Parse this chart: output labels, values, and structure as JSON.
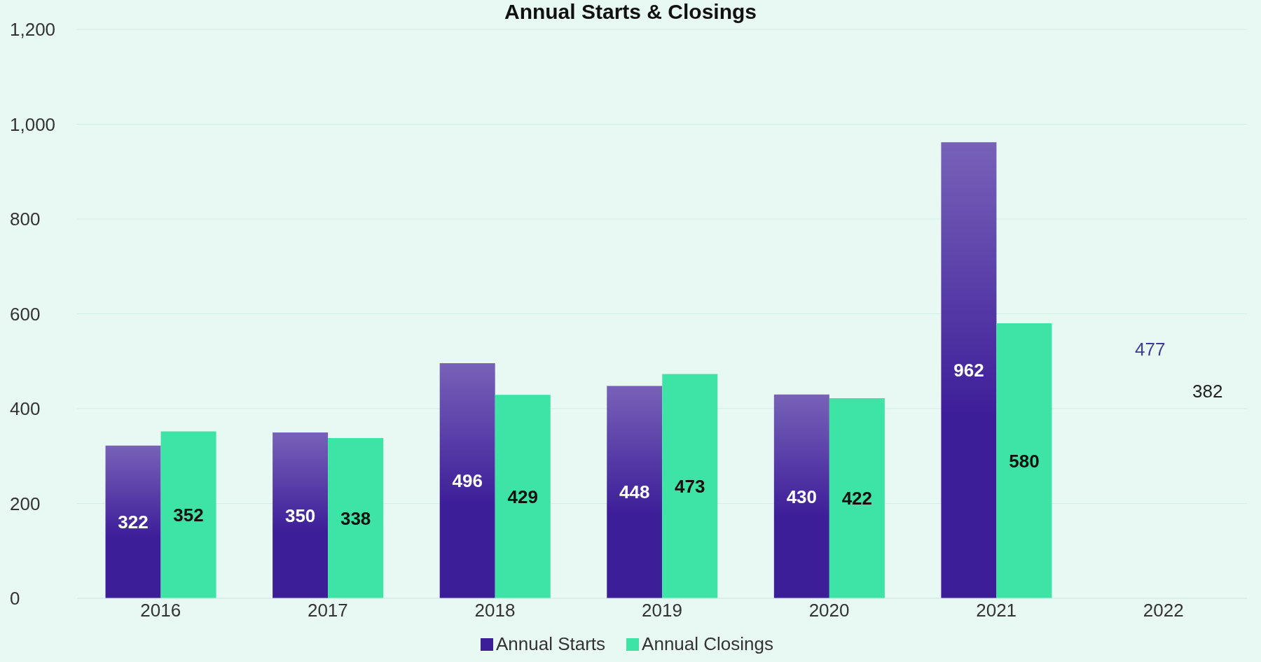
{
  "chart_data": {
    "type": "bar",
    "title": "Annual Starts & Closings",
    "categories": [
      "2016",
      "2017",
      "2018",
      "2019",
      "2020",
      "2021",
      "2022"
    ],
    "series": [
      {
        "name": "Annual Starts",
        "color": "#3d1e99",
        "values": [
          322,
          350,
          496,
          448,
          430,
          962,
          null
        ]
      },
      {
        "name": "Annual Closings",
        "color": "#3ee3a6",
        "values": [
          352,
          338,
          429,
          473,
          422,
          580,
          null
        ]
      }
    ],
    "annotations": [
      "477",
      "382"
    ],
    "ylim": [
      0,
      1200
    ],
    "yticks": [
      0,
      {
        "value": 200,
        "label": "200"
      },
      {
        "value": 400,
        "label": "400"
      },
      {
        "value": 600,
        "label": "600"
      },
      {
        "value": 800,
        "label": "800"
      },
      {
        "value": 1000,
        "label": "1,000"
      },
      {
        "value": 1200,
        "label": "1,200"
      }
    ],
    "grid": "y",
    "legend": "bottom",
    "data_labels": true
  }
}
